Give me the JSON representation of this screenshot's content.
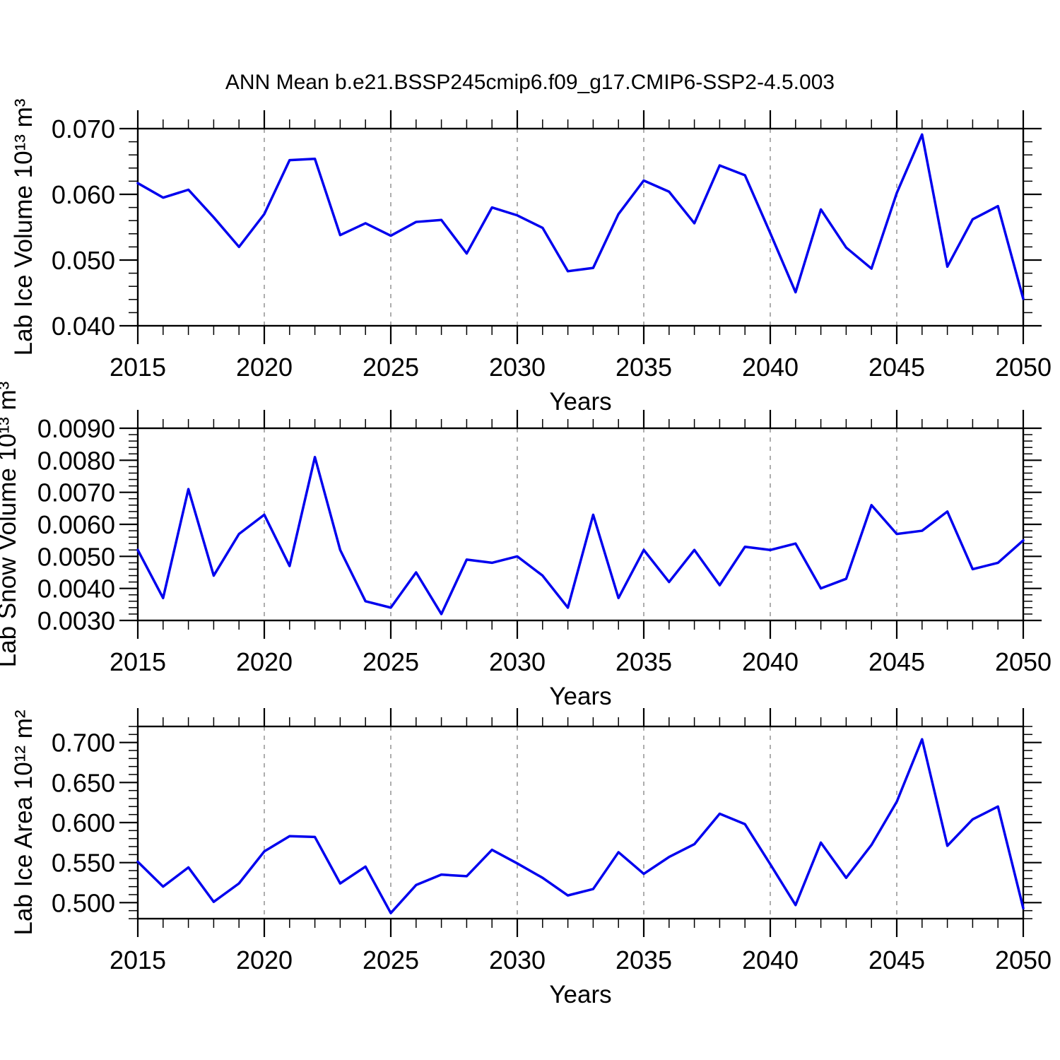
{
  "title": "ANN Mean b.e21.BSSP245cmip6.f09_g17.CMIP6-SSP2-4.5.003",
  "style": {
    "line_color": "#0000ee",
    "grid_color": "#999999",
    "frame_color": "#000000",
    "background": "#ffffff"
  },
  "chart_data": [
    {
      "type": "line",
      "title": "Lab Ice Volume",
      "ylabel": "Lab Ice Volume 10¹³ m³",
      "xlabel": "Years",
      "legend_position": "none",
      "grid": "vertical-dashed",
      "xlim": [
        2015,
        2050
      ],
      "ylim": [
        0.04,
        0.07
      ],
      "yticks": [
        0.04,
        0.05,
        0.06,
        0.07
      ],
      "ytick_labels": [
        "0.040",
        "0.050",
        "0.060",
        "0.070"
      ],
      "y_minor_step": 0.002,
      "x_minor_step": 1,
      "xticks": [
        2015,
        2020,
        2025,
        2030,
        2035,
        2040,
        2045,
        2050
      ],
      "grid_x": [
        2020,
        2025,
        2030,
        2035,
        2040,
        2045
      ],
      "x": [
        2015,
        2016,
        2017,
        2018,
        2019,
        2020,
        2021,
        2022,
        2023,
        2024,
        2025,
        2026,
        2027,
        2028,
        2029,
        2030,
        2031,
        2032,
        2033,
        2034,
        2035,
        2036,
        2037,
        2038,
        2039,
        2040,
        2041,
        2042,
        2043,
        2044,
        2045,
        2046,
        2047,
        2048,
        2049,
        2050
      ],
      "values": [
        0.0617,
        0.0595,
        0.0607,
        0.0565,
        0.052,
        0.057,
        0.0652,
        0.0654,
        0.0538,
        0.0556,
        0.0537,
        0.0558,
        0.0561,
        0.051,
        0.058,
        0.0568,
        0.0549,
        0.0483,
        0.0488,
        0.057,
        0.0621,
        0.0604,
        0.0556,
        0.0644,
        0.0629,
        0.0541,
        0.0451,
        0.0577,
        0.0519,
        0.0487,
        0.0602,
        0.0691,
        0.049,
        0.0562,
        0.0582,
        0.0441
      ]
    },
    {
      "type": "line",
      "title": "Lab Snow Volume",
      "ylabel": "Lab Snow Volume 10¹³ m³",
      "xlabel": "Years",
      "legend_position": "none",
      "grid": "vertical-dashed",
      "xlim": [
        2015,
        2050
      ],
      "ylim": [
        0.003,
        0.009
      ],
      "yticks": [
        0.003,
        0.004,
        0.005,
        0.006,
        0.007,
        0.008,
        0.009
      ],
      "ytick_labels": [
        "0.0030",
        "0.0040",
        "0.0050",
        "0.0060",
        "0.0070",
        "0.0080",
        "0.0090"
      ],
      "y_minor_step": 0.0002,
      "x_minor_step": 1,
      "xticks": [
        2015,
        2020,
        2025,
        2030,
        2035,
        2040,
        2045,
        2050
      ],
      "grid_x": [
        2020,
        2025,
        2030,
        2035,
        2040,
        2045
      ],
      "x": [
        2015,
        2016,
        2017,
        2018,
        2019,
        2020,
        2021,
        2022,
        2023,
        2024,
        2025,
        2026,
        2027,
        2028,
        2029,
        2030,
        2031,
        2032,
        2033,
        2034,
        2035,
        2036,
        2037,
        2038,
        2039,
        2040,
        2041,
        2042,
        2043,
        2044,
        2045,
        2046,
        2047,
        2048,
        2049,
        2050
      ],
      "values": [
        0.0052,
        0.0037,
        0.0071,
        0.0044,
        0.0057,
        0.0063,
        0.0047,
        0.0081,
        0.0052,
        0.0036,
        0.0034,
        0.0045,
        0.0032,
        0.0049,
        0.0048,
        0.005,
        0.0044,
        0.0034,
        0.0063,
        0.0037,
        0.0052,
        0.0042,
        0.0052,
        0.0041,
        0.0053,
        0.0052,
        0.0054,
        0.004,
        0.0043,
        0.0066,
        0.0057,
        0.0058,
        0.0064,
        0.0046,
        0.0048,
        0.0055
      ]
    },
    {
      "type": "line",
      "title": "Lab Ice Area",
      "ylabel": "Lab Ice Area 10¹² m²",
      "xlabel": "Years",
      "legend_position": "none",
      "grid": "vertical-dashed",
      "xlim": [
        2015,
        2050
      ],
      "ylim": [
        0.48,
        0.72
      ],
      "yticks": [
        0.5,
        0.55,
        0.6,
        0.65,
        0.7
      ],
      "ytick_labels": [
        "0.500",
        "0.550",
        "0.600",
        "0.650",
        "0.700"
      ],
      "y_minor_step": 0.01,
      "x_minor_step": 1,
      "xticks": [
        2015,
        2020,
        2025,
        2030,
        2035,
        2040,
        2045,
        2050
      ],
      "grid_x": [
        2020,
        2025,
        2030,
        2035,
        2040,
        2045
      ],
      "x": [
        2015,
        2016,
        2017,
        2018,
        2019,
        2020,
        2021,
        2022,
        2023,
        2024,
        2025,
        2026,
        2027,
        2028,
        2029,
        2030,
        2031,
        2032,
        2033,
        2034,
        2035,
        2036,
        2037,
        2038,
        2039,
        2040,
        2041,
        2042,
        2043,
        2044,
        2045,
        2046,
        2047,
        2048,
        2049,
        2050
      ],
      "values": [
        0.551,
        0.52,
        0.544,
        0.501,
        0.524,
        0.564,
        0.583,
        0.582,
        0.524,
        0.545,
        0.487,
        0.522,
        0.535,
        0.533,
        0.566,
        0.549,
        0.531,
        0.509,
        0.517,
        0.563,
        0.536,
        0.557,
        0.573,
        0.611,
        0.598,
        0.548,
        0.497,
        0.575,
        0.531,
        0.572,
        0.626,
        0.704,
        0.571,
        0.604,
        0.62,
        0.493
      ]
    }
  ]
}
